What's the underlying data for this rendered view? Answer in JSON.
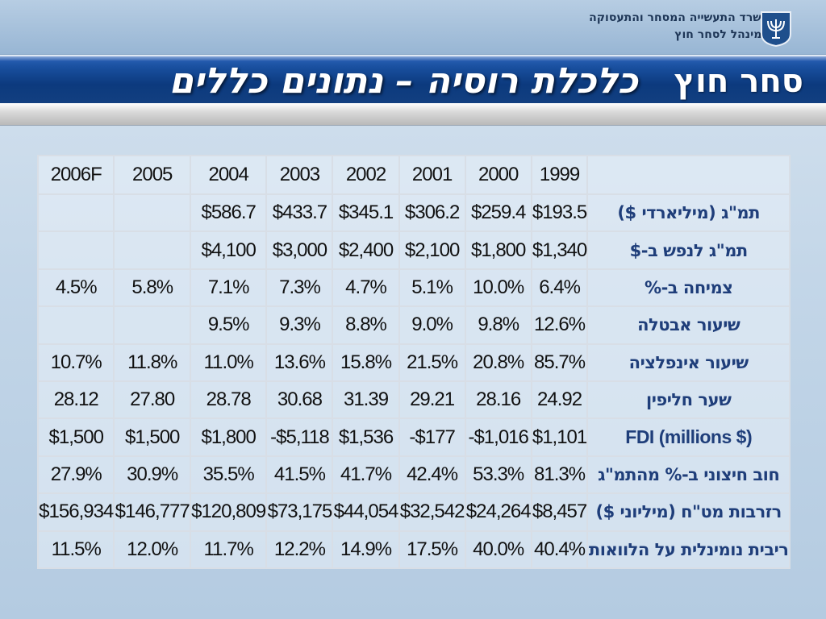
{
  "header": {
    "ministry_line1": "משרד התעשייה המסחר והתעסוקה",
    "ministry_line2": "המינהל לסחר חוץ",
    "emblem_icon": "menorah-emblem-icon",
    "section_label": "סחר חוץ",
    "title": "כלכלת רוסיה – נתונים כללים"
  },
  "table": {
    "years": [
      "2006F",
      "2005",
      "2004",
      "2003",
      "2002",
      "2001",
      "2000",
      "1999"
    ],
    "rows": [
      {
        "label": "תמ\"ג (מיליארדי $)",
        "values": [
          "",
          "",
          "$586.7",
          "$433.7",
          "$345.1",
          "$306.2",
          "$259.4",
          "$193.5"
        ]
      },
      {
        "label": "תמ\"ג לנפש ב-$",
        "values": [
          "",
          "",
          "$4,100",
          "$3,000",
          "$2,400",
          "$2,100",
          "$1,800",
          "$1,340"
        ]
      },
      {
        "label": "צמיחה ב-%",
        "values": [
          "4.5%",
          "5.8%",
          "7.1%",
          "7.3%",
          "4.7%",
          "5.1%",
          "10.0%",
          "6.4%"
        ]
      },
      {
        "label": "שיעור אבטלה",
        "values": [
          "",
          "",
          "9.5%",
          "9.3%",
          "8.8%",
          "9.0%",
          "9.8%",
          "12.6%"
        ]
      },
      {
        "label": "שיעור אינפלציה",
        "values": [
          "10.7%",
          "11.8%",
          "11.0%",
          "13.6%",
          "15.8%",
          "21.5%",
          "20.8%",
          "85.7%"
        ]
      },
      {
        "label": "שער חליפין",
        "values": [
          "28.12",
          "27.80",
          "28.78",
          "30.68",
          "31.39",
          "29.21",
          "28.16",
          "24.92"
        ]
      },
      {
        "label": "FDI (millions $)",
        "values": [
          "$1,500",
          "$1,500",
          "$1,800",
          "-$5,118",
          "$1,536",
          "-$177",
          "-$1,016",
          "$1,101"
        ]
      },
      {
        "label": "חוב חיצוני ב-% מהתמ\"ג",
        "values": [
          "27.9%",
          "30.9%",
          "35.5%",
          "41.5%",
          "41.7%",
          "42.4%",
          "53.3%",
          "81.3%"
        ]
      },
      {
        "label": "רזרבות מט\"ח (מיליוני $)",
        "values": [
          "$156,934",
          "$146,777",
          "$120,809",
          "$73,175",
          "$44,054",
          "$32,542",
          "$24,264",
          "$8,457"
        ]
      },
      {
        "label": "ריבית נומינלית על הלוואות",
        "values": [
          "11.5%",
          "12.0%",
          "11.7%",
          "12.2%",
          "14.9%",
          "17.5%",
          "40.0%",
          "40.4%"
        ]
      }
    ]
  }
}
